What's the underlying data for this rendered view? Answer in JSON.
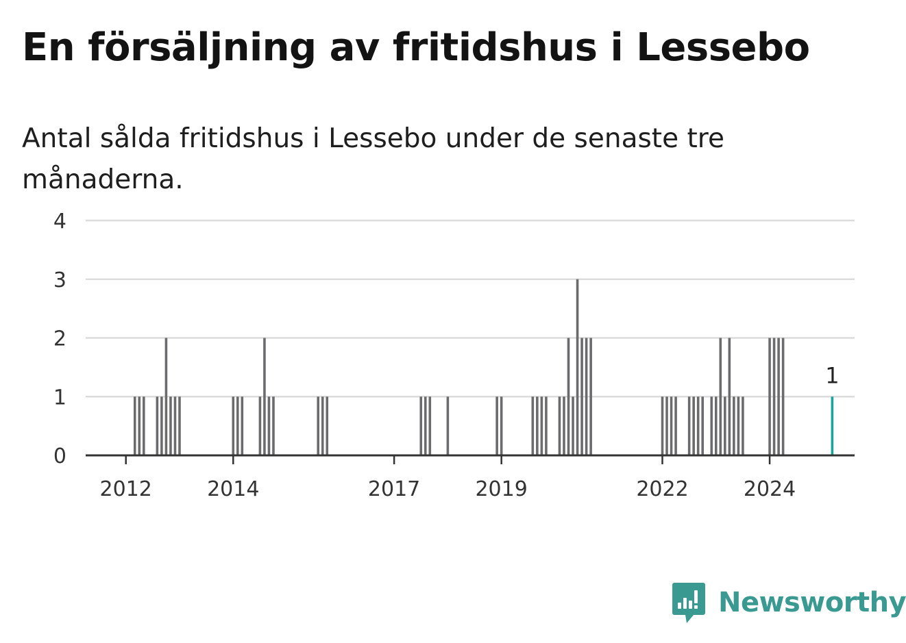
{
  "title": "En försäljning av fritidshus i Lessebo",
  "subtitle": "Antal sålda fritidshus i Lessebo under de senaste tre månaderna.",
  "brand": {
    "name": "Newsworthy",
    "icon": "newsworthy-logo-icon",
    "color": "#3a9a91"
  },
  "colors": {
    "bar": "#6b6b6e",
    "highlight": "#1aa39a",
    "grid": "#dcdcdc",
    "axis": "#333333"
  },
  "chart_data": {
    "type": "bar",
    "title": "En försäljning av fritidshus i Lessebo",
    "subtitle": "Antal sålda fritidshus i Lessebo under de senaste tre månaderna.",
    "xlabel": "",
    "ylabel": "",
    "ylim": [
      0,
      4
    ],
    "yticks": [
      0,
      1,
      2,
      3,
      4
    ],
    "xlim": [
      "2011-04",
      "2025-08"
    ],
    "xticks": [
      "2012",
      "2014",
      "2017",
      "2019",
      "2022",
      "2024"
    ],
    "grid": true,
    "x": [
      "2012-03",
      "2012-04",
      "2012-05",
      "2012-08",
      "2012-09",
      "2012-10",
      "2012-11",
      "2012-12",
      "2013-01",
      "2014-01",
      "2014-02",
      "2014-03",
      "2014-07",
      "2014-08",
      "2014-09",
      "2014-10",
      "2015-08",
      "2015-09",
      "2015-10",
      "2017-07",
      "2017-08",
      "2017-09",
      "2018-01",
      "2018-12",
      "2019-01",
      "2019-08",
      "2019-09",
      "2019-10",
      "2019-11",
      "2020-02",
      "2020-03",
      "2020-04",
      "2020-05",
      "2020-06",
      "2020-07",
      "2020-08",
      "2020-09",
      "2022-01",
      "2022-02",
      "2022-03",
      "2022-04",
      "2022-07",
      "2022-08",
      "2022-09",
      "2022-10",
      "2022-12",
      "2023-01",
      "2023-02",
      "2023-03",
      "2023-04",
      "2023-05",
      "2023-06",
      "2023-07",
      "2024-01",
      "2024-02",
      "2024-03",
      "2024-04",
      "2025-03"
    ],
    "values": [
      1,
      1,
      1,
      1,
      1,
      2,
      1,
      1,
      1,
      1,
      1,
      1,
      1,
      2,
      1,
      1,
      1,
      1,
      1,
      1,
      1,
      1,
      1,
      1,
      1,
      1,
      1,
      1,
      1,
      1,
      1,
      2,
      1,
      3,
      2,
      2,
      2,
      1,
      1,
      1,
      1,
      1,
      1,
      1,
      1,
      1,
      1,
      2,
      1,
      2,
      1,
      1,
      1,
      2,
      2,
      2,
      2,
      1
    ],
    "highlight_index": 57,
    "labels": [
      {
        "index": 57,
        "text": "1"
      }
    ]
  }
}
